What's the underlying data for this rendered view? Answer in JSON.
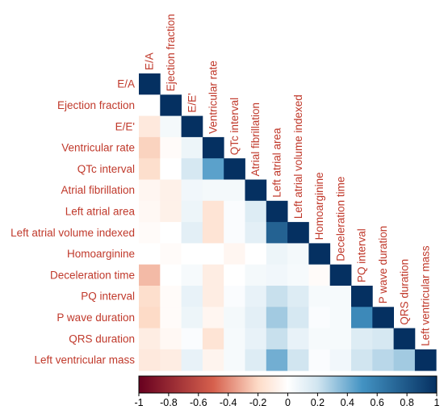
{
  "chart_data": {
    "type": "heatmap",
    "title": "",
    "layout": "lower-triangle",
    "variables": [
      "E/A",
      "Ejection fraction",
      "E/E'",
      "Ventricular rate",
      "QTc interval",
      "Atrial fibrillation",
      "Left atrial area",
      "Left atrial volume indexed",
      "Homoarginine",
      "Deceleration time",
      "PQ interval",
      "P wave duration",
      "QRS duration",
      "Left ventricular mass"
    ],
    "matrix": [
      [
        1
      ],
      [
        0.0,
        1
      ],
      [
        -0.12,
        0.05,
        1
      ],
      [
        -0.22,
        -0.02,
        0.08,
        1
      ],
      [
        -0.18,
        0.0,
        0.18,
        0.45,
        1
      ],
      [
        -0.05,
        -0.08,
        0.06,
        0.05,
        0.05,
        1
      ],
      [
        -0.04,
        -0.08,
        0.08,
        -0.15,
        0.02,
        0.15,
        1
      ],
      [
        -0.02,
        0.0,
        0.12,
        -0.15,
        0.02,
        0.12,
        0.75,
        1
      ],
      [
        0.0,
        -0.02,
        0.0,
        0.0,
        -0.05,
        0.0,
        0.08,
        0.05,
        1
      ],
      [
        -0.28,
        0.0,
        0.04,
        -0.1,
        0.0,
        0.05,
        0.06,
        0.04,
        -0.02,
        1
      ],
      [
        -0.18,
        -0.02,
        0.1,
        -0.1,
        0.02,
        0.1,
        0.22,
        0.15,
        0.04,
        0.04,
        1
      ],
      [
        -0.2,
        -0.02,
        0.08,
        -0.05,
        0.05,
        0.12,
        0.3,
        0.18,
        0.02,
        0.04,
        0.55,
        1
      ],
      [
        -0.1,
        -0.04,
        0.02,
        -0.15,
        0.04,
        0.1,
        0.22,
        0.1,
        0.04,
        0.04,
        0.15,
        0.18,
        1
      ],
      [
        -0.12,
        -0.1,
        0.1,
        -0.06,
        0.04,
        0.15,
        0.4,
        0.2,
        0.02,
        0.06,
        0.2,
        0.25,
        0.3,
        1
      ]
    ],
    "colorbar": {
      "range": [
        -1,
        1
      ],
      "ticks": [
        "-1",
        "-0.8",
        "-0.6",
        "-0.4",
        "-0.2",
        "0",
        "0.2",
        "0.4",
        "0.6",
        "0.8",
        "1"
      ],
      "colors": {
        "neg_end": "#67001f",
        "neg_mid": "#d6604d",
        "neg_light": "#fddbc7",
        "zero": "#ffffff",
        "pos_light": "#d1e5f0",
        "pos_mid": "#4393c3",
        "pos_end": "#053061"
      }
    },
    "label_color": "#c0392b"
  }
}
